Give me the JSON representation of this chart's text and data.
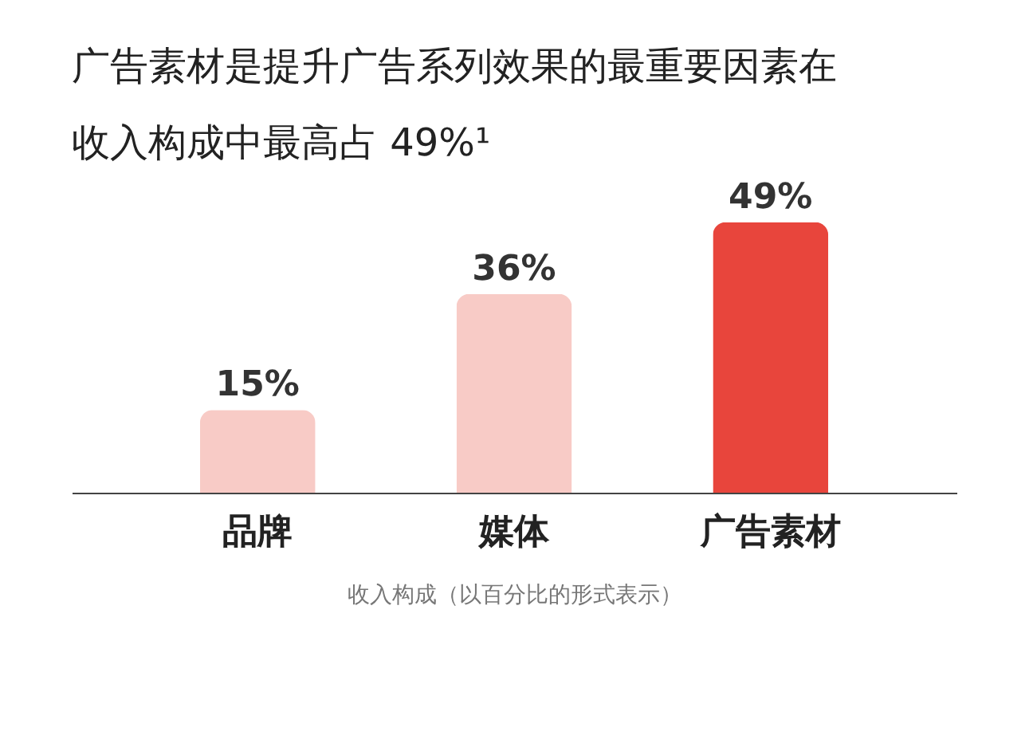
{
  "chart_data": {
    "type": "bar",
    "title": "广告素材是提升广告系列效果的最重要因素在收入构成中最高占 49%¹",
    "xlabel": "收入构成（以百分比的形式表示）",
    "categories": [
      "品牌",
      "媒体",
      "广告素材"
    ],
    "values": [
      15,
      36,
      49
    ],
    "colors": [
      "#f8cbc6",
      "#f8cbc6",
      "#e8453c"
    ],
    "value_labels": [
      "15%",
      "36%",
      "49%"
    ]
  }
}
